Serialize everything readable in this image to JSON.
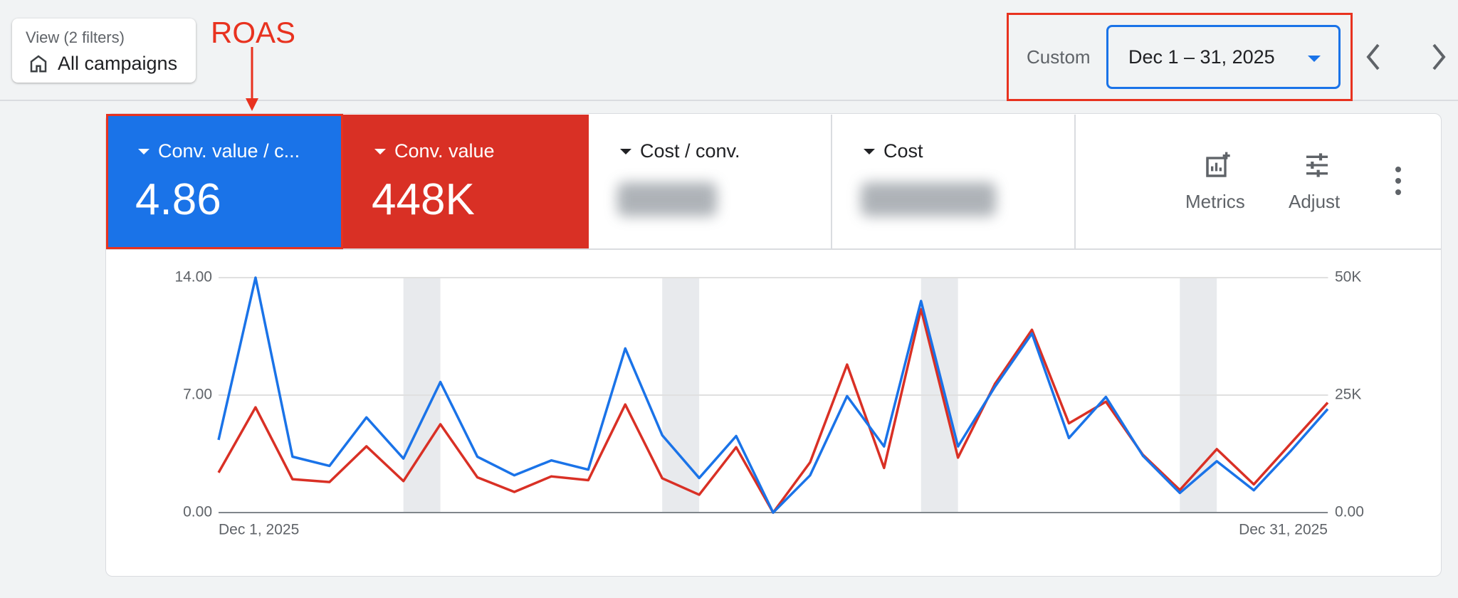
{
  "header": {
    "view_label": "View (2 filters)",
    "view_value": "All campaigns",
    "annotation": "ROAS",
    "date_mode": "Custom",
    "date_range": "Dec 1 – 31, 2025"
  },
  "scorecards": [
    {
      "label": "Conv. value / c...",
      "value": "4.86"
    },
    {
      "label": "Conv. value",
      "value": "448K"
    },
    {
      "label": "Cost / conv."
    },
    {
      "label": "Cost"
    }
  ],
  "toolbar": {
    "metrics": "Metrics",
    "adjust": "Adjust"
  },
  "chart_data": {
    "type": "line",
    "categories": [
      "Dec 1, 2025",
      null,
      null,
      null,
      null,
      null,
      null,
      null,
      null,
      null,
      null,
      null,
      null,
      null,
      null,
      null,
      null,
      null,
      null,
      null,
      null,
      null,
      null,
      null,
      null,
      null,
      null,
      null,
      null,
      null,
      "Dec 31, 2025"
    ],
    "series": [
      {
        "color": "#1a73e8",
        "values": [
          4.33,
          14.0,
          3.33,
          2.78,
          5.67,
          3.22,
          7.78,
          3.33,
          2.22,
          3.11,
          2.56,
          9.78,
          4.61,
          2.06,
          4.56,
          0,
          2.22,
          6.94,
          3.94,
          12.61,
          3.94,
          7.5,
          10.67,
          4.44,
          6.89,
          3.39,
          1.17,
          3.06,
          1.33,
          3.67,
          6.17
        ]
      },
      {
        "color": "#d93025",
        "axis": "y2",
        "values": [
          8500,
          22400,
          7100,
          6500,
          14100,
          6700,
          18800,
          7500,
          4400,
          7700,
          6900,
          23000,
          7300,
          3800,
          13900,
          0,
          10700,
          31500,
          9500,
          43300,
          11700,
          27400,
          38900,
          19000,
          23600,
          12300,
          4800,
          13500,
          6000,
          14700,
          23400
        ]
      }
    ],
    "ylim": [
      0,
      14
    ],
    "yticks": [
      {
        "value": 0,
        "label": "0.00"
      },
      {
        "value": 7,
        "label": "7.00"
      },
      {
        "value": 14,
        "label": "14.00"
      }
    ],
    "y2lim": [
      0,
      50000
    ],
    "y2ticks": [
      {
        "value": 0,
        "label": "0.00"
      },
      {
        "value": 25000,
        "label": "25K"
      },
      {
        "value": 50000,
        "label": "50K"
      }
    ],
    "grid": true
  }
}
